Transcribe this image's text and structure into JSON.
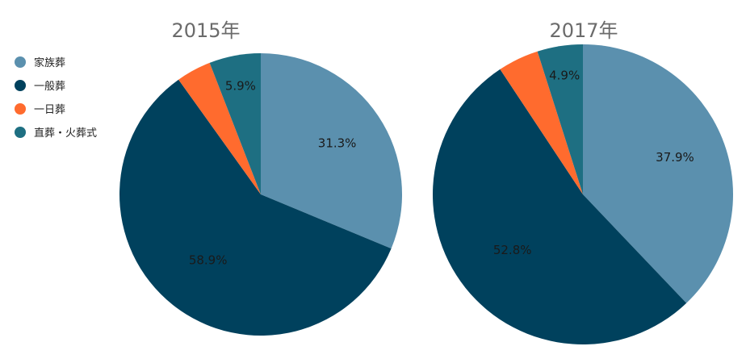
{
  "chart_data": [
    {
      "type": "pie",
      "title": "2015年",
      "categories": [
        "家族葬",
        "一般葬",
        "一日葬",
        "直葬・火葬式"
      ],
      "values": [
        31.3,
        58.9,
        4.0,
        5.9
      ],
      "value_labels": [
        "31.3%",
        "58.9%",
        "",
        "5.9%"
      ]
    },
    {
      "type": "pie",
      "title": "2017年",
      "categories": [
        "家族葬",
        "一般葬",
        "一日葬",
        "直葬・火葬式"
      ],
      "values": [
        37.9,
        52.8,
        4.4,
        4.9
      ],
      "value_labels": [
        "37.9%",
        "52.8%",
        "",
        "4.9%"
      ]
    }
  ],
  "legend": {
    "placement": "left",
    "items": [
      {
        "label": "家族葬",
        "color": "#5b90ae"
      },
      {
        "label": "一般葬",
        "color": "#00415d"
      },
      {
        "label": "一日葬",
        "color": "#ff6b2e"
      },
      {
        "label": "直葬・火葬式",
        "color": "#1e6f82"
      }
    ]
  }
}
